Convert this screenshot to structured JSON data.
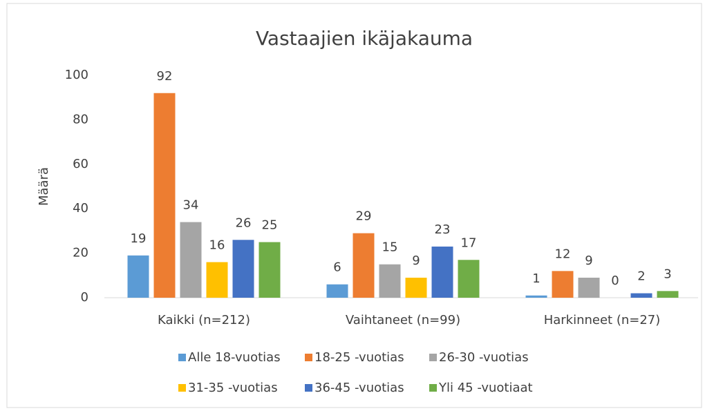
{
  "chart_data": {
    "type": "bar",
    "title": "Vastaajien ikäjakauma",
    "y_label": "Määrä",
    "categories": [
      "Kaikki  (n=212)",
      "Vaihtaneet (n=99)",
      "Harkinneet (n=27)"
    ],
    "series": [
      {
        "name": "Alle 18-vuotias",
        "color": "#5b9bd5",
        "values": [
          19,
          6,
          1
        ]
      },
      {
        "name": "18-25 -vuotias",
        "color": "#ed7d31",
        "values": [
          92,
          29,
          12
        ]
      },
      {
        "name": "26-30 -vuotias",
        "color": "#a5a5a5",
        "values": [
          34,
          15,
          9
        ]
      },
      {
        "name": "31-35 -vuotias",
        "color": "#ffc000",
        "values": [
          16,
          9,
          0
        ]
      },
      {
        "name": "36-45 -vuotias",
        "color": "#4472c4",
        "values": [
          26,
          23,
          2
        ]
      },
      {
        "name": "Yli 45 -vuotiaat",
        "color": "#70ad47",
        "values": [
          25,
          17,
          3
        ]
      }
    ],
    "ylim": [
      0,
      100
    ],
    "yticks": [
      0,
      20,
      40,
      60,
      80,
      100
    ],
    "grid": false,
    "legend": "bottom"
  }
}
